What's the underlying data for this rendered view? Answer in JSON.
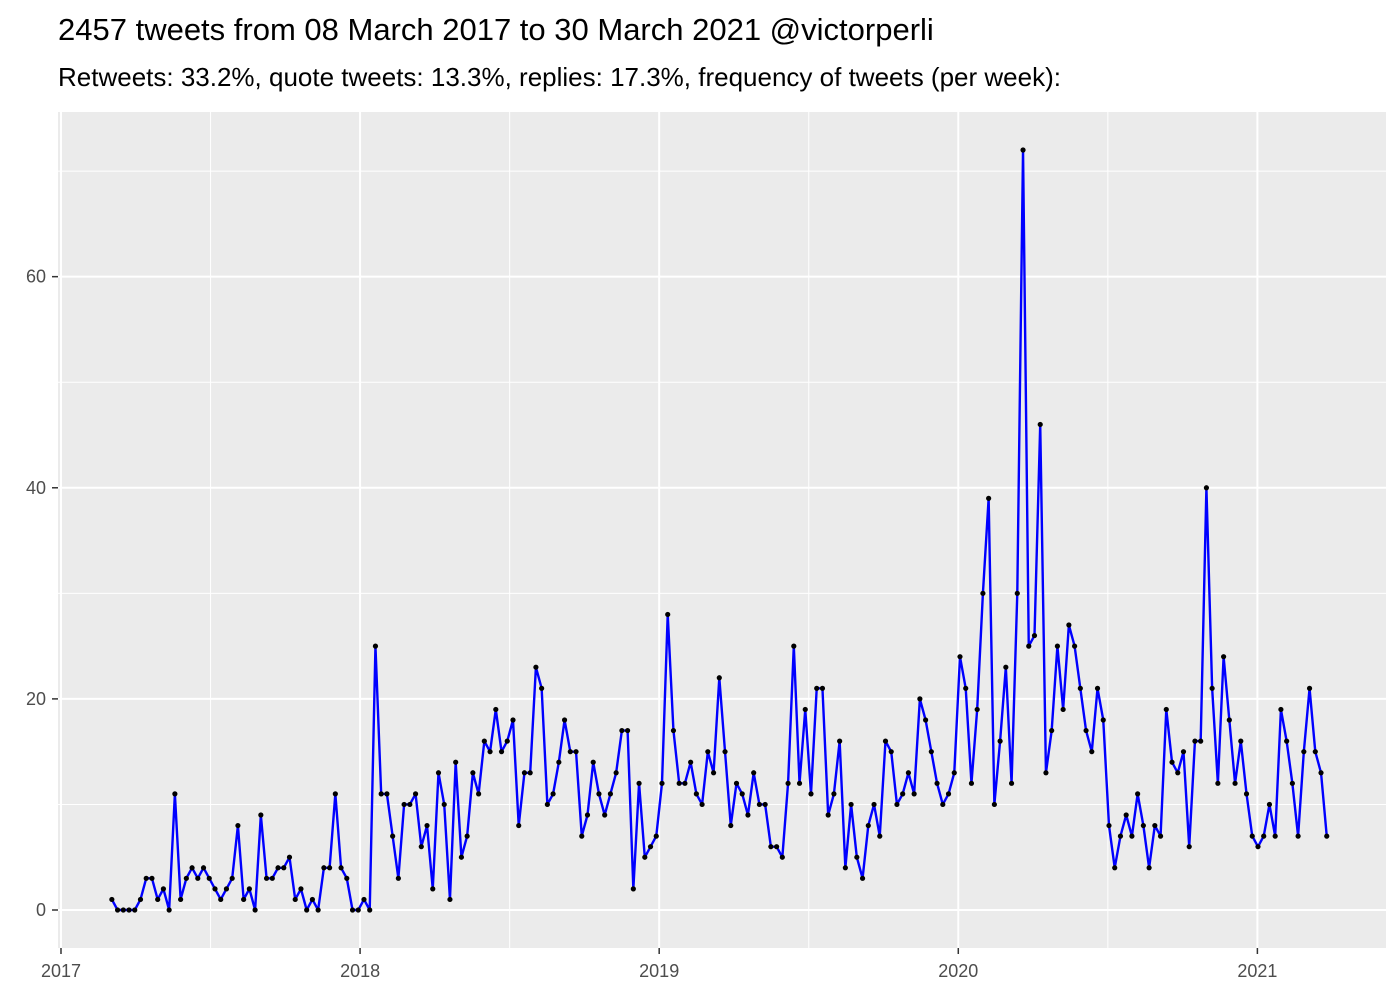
{
  "chart_data": {
    "type": "line",
    "title": "2457 tweets from 08 March 2017 to 30 March 2021 @victorperli",
    "subtitle": "Retweets: 33.2%, quote tweets: 13.3%, replies: 17.3%, frequency of tweets (per week):",
    "xlabel": "",
    "ylabel": "",
    "x_tick_labels": [
      "2017",
      "2018",
      "2019",
      "2020",
      "2021"
    ],
    "y_tick_labels": [
      "0",
      "20",
      "40",
      "60"
    ],
    "y_ticks": [
      0,
      20,
      40,
      60
    ],
    "x_ticks": [
      2017,
      2018,
      2019,
      2020,
      2021
    ],
    "xlim": [
      2016.99,
      2021.43
    ],
    "ylim": [
      -3.6,
      75.6
    ],
    "x_start": 2017.17,
    "x_step": 0.01916,
    "grid": true,
    "legend": "none",
    "colors": {
      "line": "#0000ff",
      "point": "#000000",
      "panel": "#ebebeb",
      "grid": "#ffffff",
      "tick_text": "#4d4d4d"
    },
    "series": [
      {
        "values": [
          1,
          0,
          0,
          0,
          0,
          1,
          3,
          3,
          1,
          2,
          0,
          11,
          1,
          3,
          4,
          3,
          4,
          3,
          2,
          1,
          2,
          3,
          8,
          1,
          2,
          0,
          9,
          3,
          3,
          4,
          4,
          5,
          1,
          2,
          0,
          1,
          0,
          4,
          4,
          11,
          4,
          3,
          0,
          0,
          1,
          0,
          25,
          11,
          11,
          7,
          3,
          10,
          10,
          11,
          6,
          8,
          2,
          13,
          10,
          1,
          14,
          5,
          7,
          13,
          11,
          16,
          15,
          19,
          15,
          16,
          18,
          8,
          13,
          13,
          23,
          21,
          10,
          11,
          14,
          18,
          15,
          15,
          7,
          9,
          14,
          11,
          9,
          11,
          13,
          17,
          17,
          2,
          12,
          5,
          6,
          7,
          12,
          28,
          17,
          12,
          12,
          14,
          11,
          10,
          15,
          13,
          22,
          15,
          8,
          12,
          11,
          9,
          13,
          10,
          10,
          6,
          6,
          5,
          12,
          25,
          12,
          19,
          11,
          21,
          21,
          9,
          11,
          16,
          4,
          10,
          5,
          3,
          8,
          10,
          7,
          16,
          15,
          10,
          11,
          13,
          11,
          20,
          18,
          15,
          12,
          10,
          11,
          13,
          24,
          21,
          12,
          19,
          30,
          39,
          10,
          16,
          23,
          12,
          30,
          72,
          25,
          26,
          46,
          13,
          17,
          25,
          19,
          27,
          25,
          21,
          17,
          15,
          21,
          18,
          8,
          4,
          7,
          9,
          7,
          11,
          8,
          4,
          8,
          7,
          19,
          14,
          13,
          15,
          6,
          16,
          16,
          40,
          21,
          12,
          24,
          18,
          12,
          16,
          11,
          7,
          6,
          7,
          10,
          7,
          19,
          16,
          12,
          7,
          15,
          21,
          15,
          13,
          7
        ]
      }
    ]
  }
}
